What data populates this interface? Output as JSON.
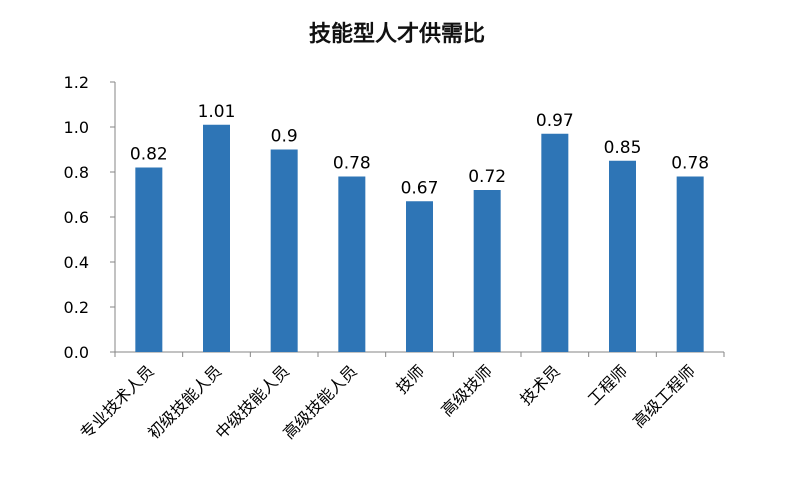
{
  "chart_data": {
    "type": "bar",
    "title": "技能型人才供需比",
    "categories": [
      "专业技术人员",
      "初级技能人员",
      "中级技能人员",
      "高级技能人员",
      "技师",
      "高级技师",
      "技术员",
      "工程师",
      "高级工程师"
    ],
    "values": [
      0.82,
      1.01,
      0.9,
      0.78,
      0.67,
      0.72,
      0.97,
      0.85,
      0.78
    ],
    "data_labels": [
      "0.82",
      "1.01",
      "0.9",
      "0.78",
      "0.67",
      "0.72",
      "0.97",
      "0.85",
      "0.78"
    ],
    "yticks": [
      "0.0",
      "0.2",
      "0.4",
      "0.6",
      "0.8",
      "1.0",
      "1.2"
    ],
    "ytick_values": [
      0,
      0.2,
      0.4,
      0.6,
      0.8,
      1.0,
      1.2
    ],
    "ylim": [
      0,
      1.2
    ],
    "xlabel": "",
    "ylabel": "",
    "grid": false,
    "legend": "none",
    "bar_color": "#2E75B6",
    "axis_color": "#868686"
  }
}
